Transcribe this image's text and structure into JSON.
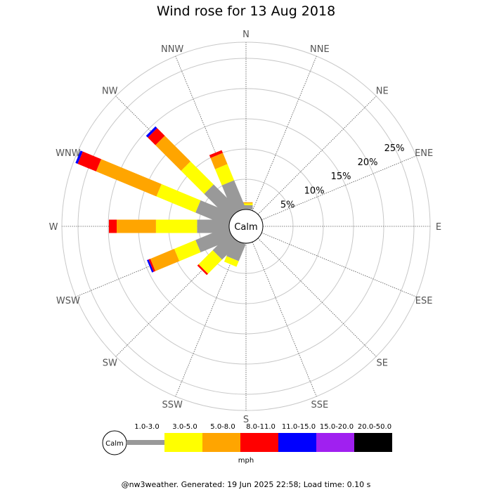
{
  "title": "Wind rose for 13 Aug 2018",
  "footer": "@nw3weather. Generated: 19 Jun 2025 22:58; Load time: 0.10 s",
  "chart_data": {
    "type": "wind-rose",
    "title": "Wind rose for 13 Aug 2018",
    "directions": [
      "N",
      "NNE",
      "NE",
      "ENE",
      "E",
      "ESE",
      "SE",
      "SSE",
      "S",
      "SSW",
      "SW",
      "WSW",
      "W",
      "WNW",
      "NW",
      "NNW"
    ],
    "rings": [
      5,
      10,
      15,
      20,
      25
    ],
    "ring_labels": [
      "5%",
      "10%",
      "15%",
      "20%",
      "25%"
    ],
    "calm_label": "Calm",
    "unit": "mph",
    "bins": [
      {
        "label": "1.0-3.0",
        "color": "#999999"
      },
      {
        "label": "3.0-5.0",
        "color": "#ffff00"
      },
      {
        "label": "5.0-8.0",
        "color": "#ffa500"
      },
      {
        "label": "8.0-11.0",
        "color": "#ff0000"
      },
      {
        "label": "11.0-15.0",
        "color": "#0000ff"
      },
      {
        "label": "15.0-20.0",
        "color": "#a020f0"
      },
      {
        "label": "20.0-50.0",
        "color": "#000000"
      }
    ],
    "stacks": [
      {
        "dir": "N",
        "segments": [
          0.7,
          0.3,
          0.2,
          0,
          0,
          0,
          0
        ]
      },
      {
        "dir": "NNE",
        "segments": [
          0,
          0,
          0,
          0,
          0,
          0,
          0
        ]
      },
      {
        "dir": "NE",
        "segments": [
          0,
          0,
          0,
          0,
          0,
          0,
          0
        ]
      },
      {
        "dir": "ENE",
        "segments": [
          0,
          0,
          0,
          0,
          0,
          0,
          0
        ]
      },
      {
        "dir": "E",
        "segments": [
          0,
          0,
          0,
          0,
          0,
          0,
          0
        ]
      },
      {
        "dir": "ESE",
        "segments": [
          0,
          0,
          0,
          0,
          0,
          0,
          0
        ]
      },
      {
        "dir": "SE",
        "segments": [
          0,
          0,
          0,
          0,
          0,
          0,
          0
        ]
      },
      {
        "dir": "SSE",
        "segments": [
          0,
          0,
          0,
          0,
          0,
          0,
          0
        ]
      },
      {
        "dir": "S",
        "segments": [
          0,
          0,
          0,
          0,
          0,
          0,
          0
        ]
      },
      {
        "dir": "SSW",
        "segments": [
          3.0,
          1.0,
          0,
          0,
          0,
          0,
          0
        ]
      },
      {
        "dir": "SW",
        "segments": [
          3.9,
          3.3,
          0,
          0.3,
          0,
          0,
          0
        ]
      },
      {
        "dir": "WSW",
        "segments": [
          5.8,
          3.8,
          4.3,
          0.3,
          0.3,
          0,
          0
        ]
      },
      {
        "dir": "W",
        "segments": [
          5.3,
          6.8,
          6.5,
          1.3,
          0,
          0,
          0
        ]
      },
      {
        "dir": "WNW",
        "segments": [
          5.8,
          7.0,
          10.8,
          3.3,
          0.4,
          0,
          0
        ]
      },
      {
        "dir": "NW",
        "segments": [
          5.9,
          5.4,
          6.0,
          1.8,
          0.4,
          0,
          0
        ]
      },
      {
        "dir": "NNW",
        "segments": [
          5.0,
          2.9,
          2.0,
          0.5,
          0,
          0,
          0
        ]
      }
    ]
  }
}
